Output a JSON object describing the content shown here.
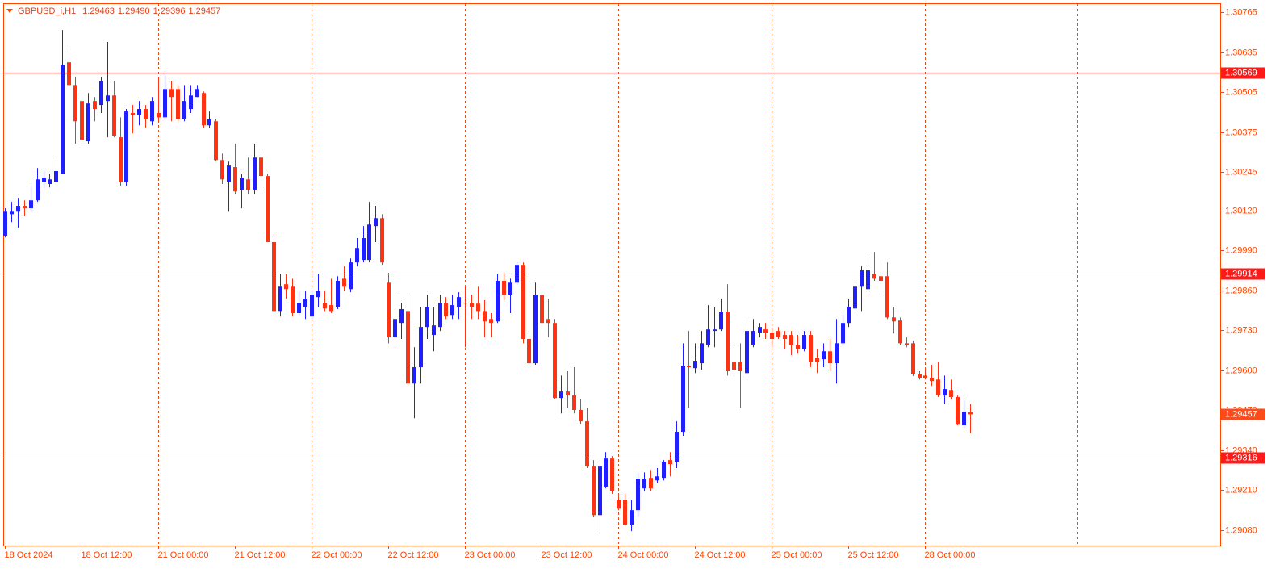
{
  "chart_data": {
    "type": "candlestick",
    "title": "GBPUSD_i,H1",
    "quote_labels": [
      "1.29463",
      "1.29490",
      "1.29396",
      "1.29457"
    ],
    "categories": [
      "18 Oct 2024",
      null,
      null,
      null,
      null,
      null,
      null,
      null,
      null,
      null,
      null,
      null,
      "18 Oct 12:00",
      null,
      null,
      null,
      null,
      null,
      null,
      null,
      null,
      null,
      null,
      null,
      "21 Oct 00:00",
      null,
      null,
      null,
      null,
      null,
      null,
      null,
      null,
      null,
      null,
      null,
      "21 Oct 12:00",
      null,
      null,
      null,
      null,
      null,
      null,
      null,
      null,
      null,
      null,
      null,
      "22 Oct 00:00",
      null,
      null,
      null,
      null,
      null,
      null,
      null,
      null,
      null,
      null,
      null,
      "22 Oct 12:00",
      null,
      null,
      null,
      null,
      null,
      null,
      null,
      null,
      null,
      null,
      null,
      "23 Oct 00:00",
      null,
      null,
      null,
      null,
      null,
      null,
      null,
      null,
      null,
      null,
      null,
      "23 Oct 12:00",
      null,
      null,
      null,
      null,
      null,
      null,
      null,
      null,
      null,
      null,
      null,
      "24 Oct 00:00",
      null,
      null,
      null,
      null,
      null,
      null,
      null,
      null,
      null,
      null,
      null,
      "24 Oct 12:00",
      null,
      null,
      null,
      null,
      null,
      null,
      null,
      null,
      null,
      null,
      null,
      "25 Oct 00:00",
      null,
      null,
      null,
      null,
      null,
      null,
      null,
      null,
      null,
      null,
      null,
      "25 Oct 12:00",
      null,
      null,
      null,
      null,
      null,
      null,
      null,
      null,
      null,
      null,
      null,
      "28 Oct 00:00",
      null,
      null,
      null,
      null,
      null,
      null,
      null
    ],
    "open": [
      1.30038,
      1.30108,
      1.30116,
      1.30135,
      1.30127,
      1.30153,
      1.30213,
      1.30206,
      1.30213,
      1.3024,
      1.30602,
      1.30528,
      1.30476,
      1.30345,
      1.30476,
      1.30463,
      1.30476,
      1.30494,
      1.30358,
      1.30213,
      1.30437,
      1.30431,
      1.3045,
      1.3041,
      1.30437,
      1.30423,
      1.30515,
      1.30515,
      1.30416,
      1.3045,
      1.30489,
      1.30502,
      1.30397,
      1.3041,
      1.30284,
      1.30213,
      1.30261,
      1.30187,
      1.30221,
      1.30187,
      1.30292,
      1.30232,
      1.30017,
      1.29793,
      1.2988,
      1.29872,
      1.29786,
      1.29807,
      1.29775,
      1.29838,
      1.2982,
      1.29812,
      1.29807,
      1.29898,
      1.29864,
      1.29951,
      1.29959,
      1.29959,
      1.30069,
      1.30095,
      1.29885,
      1.29707,
      1.29754,
      1.29793,
      1.29557,
      1.2961,
      1.29741,
      1.29715,
      1.29741,
      1.2982,
      1.2978,
      1.29807,
      1.2982,
      1.2982,
      1.29817,
      1.29793,
      1.29767,
      1.29759,
      1.29891,
      1.29846,
      1.29885,
      1.29943,
      1.29702,
      1.29623,
      1.29846,
      1.29767,
      1.29754,
      1.2951,
      1.29531,
      1.29518,
      1.29471,
      1.29434,
      1.29287,
      1.29129,
      1.29221,
      1.29313,
      1.29177,
      1.29177,
      1.29098,
      1.29145,
      1.29216,
      1.2925,
      1.29242,
      1.2925,
      1.29308,
      1.29303,
      1.294,
      1.29615,
      1.29607,
      1.29623,
      1.29681,
      1.29728,
      1.29733,
      1.29791,
      1.29628,
      1.29628,
      1.29591,
      1.29681,
      1.29723,
      1.29733,
      1.29723,
      1.29728,
      1.29715,
      1.29715,
      1.29681,
      1.2967,
      1.29715,
      1.29641,
      1.29636,
      1.29662,
      1.29623,
      1.29688,
      1.29754,
      1.29801,
      1.29872,
      1.29864,
      1.29912,
      1.29906,
      1.29906,
      1.29772,
      1.29762,
      1.29688,
      1.29688,
      1.29589,
      1.29583,
      1.29576,
      1.2957,
      1.29518,
      1.29536,
      1.29513,
      1.29421,
      1.29463
    ],
    "high": [
      1.30127,
      1.30148,
      1.30161,
      1.30153,
      1.302,
      1.30258,
      1.30248,
      1.3024,
      1.30292,
      1.30707,
      1.30646,
      1.30555,
      1.30494,
      1.30502,
      1.30489,
      1.30555,
      1.30668,
      1.30542,
      1.30423,
      1.3045,
      1.30463,
      1.30476,
      1.30463,
      1.30489,
      1.30555,
      1.3056,
      1.30542,
      1.30528,
      1.30528,
      1.30528,
      1.30528,
      1.30507,
      1.30442,
      1.30416,
      1.30305,
      1.30279,
      1.30337,
      1.3024,
      1.30292,
      1.30337,
      1.30318,
      1.3024,
      1.3003,
      1.29912,
      1.29912,
      1.29898,
      1.29859,
      1.29859,
      1.29859,
      1.29912,
      1.29859,
      1.29898,
      1.29906,
      1.29938,
      1.29964,
      1.3003,
      1.30069,
      1.30148,
      1.30135,
      1.30108,
      1.29917,
      1.29846,
      1.2982,
      1.29846,
      1.29675,
      1.29807,
      1.29846,
      1.29807,
      1.29846,
      1.29838,
      1.29846,
      1.29854,
      1.29872,
      1.29846,
      1.29872,
      1.29828,
      1.29786,
      1.29912,
      1.29917,
      1.29898,
      1.29951,
      1.29951,
      1.29728,
      1.29885,
      1.29872,
      1.29833,
      1.29767,
      1.29583,
      1.29597,
      1.2961,
      1.29505,
      1.29478,
      1.29308,
      1.29303,
      1.29334,
      1.29321,
      1.2919,
      1.29198,
      1.29177,
      1.29268,
      1.29268,
      1.29276,
      1.29282,
      1.29308,
      1.29334,
      1.29434,
      1.29688,
      1.29728,
      1.29688,
      1.29728,
      1.29812,
      1.29807,
      1.29833,
      1.2988,
      1.29681,
      1.29688,
      1.29775,
      1.29767,
      1.29754,
      1.29754,
      1.29741,
      1.29741,
      1.29728,
      1.29728,
      1.29715,
      1.29728,
      1.29728,
      1.2967,
      1.29688,
      1.29702,
      1.29767,
      1.2978,
      1.29833,
      1.29885,
      1.29938,
      1.29969,
      1.29985,
      1.29964,
      1.29951,
      1.29807,
      1.29772,
      1.29707,
      1.29696,
      1.29597,
      1.29602,
      1.29618,
      1.29628,
      1.29583,
      1.2957,
      1.29518,
      1.29505,
      1.2949
    ],
    "low": [
      1.30032,
      1.30082,
      1.30064,
      1.30101,
      1.30116,
      1.30148,
      1.30195,
      1.30195,
      1.302,
      1.3024,
      1.30515,
      1.30337,
      1.30337,
      1.30337,
      1.3041,
      1.30437,
      1.30358,
      1.30358,
      1.302,
      1.302,
      1.30371,
      1.30397,
      1.30389,
      1.30397,
      1.3041,
      1.30416,
      1.3041,
      1.3041,
      1.3041,
      1.30437,
      1.30489,
      1.30389,
      1.30389,
      1.30279,
      1.30206,
      1.30116,
      1.30174,
      1.30127,
      1.30174,
      1.30174,
      1.30187,
      1.30017,
      1.29786,
      1.29775,
      1.29833,
      1.29775,
      1.2978,
      1.29767,
      1.29765,
      1.29807,
      1.29793,
      1.29786,
      1.29799,
      1.29859,
      1.29854,
      1.29938,
      1.29951,
      1.29951,
      1.30017,
      1.29943,
      1.29688,
      1.29688,
      1.29702,
      1.29549,
      1.29444,
      1.29557,
      1.29702,
      1.29662,
      1.29728,
      1.29767,
      1.29767,
      1.29767,
      1.29675,
      1.29767,
      1.29767,
      1.29707,
      1.29707,
      1.29754,
      1.29828,
      1.29786,
      1.2988,
      1.29688,
      1.29618,
      1.29618,
      1.29741,
      1.29707,
      1.29505,
      1.2946,
      1.29478,
      1.2946,
      1.29426,
      1.29282,
      1.29124,
      1.29072,
      1.29216,
      1.29198,
      1.29145,
      1.29093,
      1.29077,
      1.29124,
      1.29208,
      1.29208,
      1.29234,
      1.29242,
      1.29255,
      1.29282,
      1.29387,
      1.29478,
      1.29591,
      1.29602,
      1.29675,
      1.29675,
      1.29728,
      1.29583,
      1.2957,
      1.29478,
      1.29583,
      1.29675,
      1.29707,
      1.29702,
      1.29675,
      1.29702,
      1.2967,
      1.29649,
      1.29654,
      1.29662,
      1.2961,
      1.29591,
      1.2961,
      1.29597,
      1.29557,
      1.29681,
      1.29741,
      1.29793,
      1.29793,
      1.29854,
      1.29891,
      1.29846,
      1.29767,
      1.2972,
      1.29681,
      1.29675,
      1.29581,
      1.2957,
      1.2957,
      1.29549,
      1.29513,
      1.29492,
      1.29505,
      1.29421,
      1.29413,
      1.29396
    ],
    "close": [
      1.30116,
      1.30116,
      1.30135,
      1.30127,
      1.30153,
      1.30221,
      1.30227,
      1.30221,
      1.30248,
      1.30594,
      1.30528,
      1.3041,
      1.3035,
      1.30468,
      1.3045,
      1.30542,
      1.30494,
      1.30363,
      1.30213,
      1.30442,
      1.30431,
      1.3045,
      1.30416,
      1.30476,
      1.30423,
      1.30515,
      1.30489,
      1.30416,
      1.30476,
      1.30494,
      1.30515,
      1.30397,
      1.30416,
      1.30284,
      1.30221,
      1.30266,
      1.30182,
      1.30227,
      1.30187,
      1.30292,
      1.30232,
      1.30017,
      1.29793,
      1.29872,
      1.29864,
      1.29786,
      1.2982,
      1.29833,
      1.29846,
      1.29859,
      1.29801,
      1.29793,
      1.29891,
      1.29872,
      1.29951,
      1.29998,
      1.3003,
      1.30074,
      1.30095,
      1.29951,
      1.29707,
      1.29767,
      1.29799,
      1.29557,
      1.2961,
      1.29741,
      1.29807,
      1.29746,
      1.2982,
      1.29775,
      1.29812,
      1.29838,
      1.29817,
      1.29807,
      1.29793,
      1.29759,
      1.29754,
      1.29891,
      1.29846,
      1.29885,
      1.29943,
      1.29702,
      1.29623,
      1.29846,
      1.29754,
      1.29754,
      1.2951,
      1.29531,
      1.29518,
      1.29471,
      1.29434,
      1.29287,
      1.29129,
      1.29287,
      1.29313,
      1.29208,
      1.2915,
      1.29098,
      1.29145,
      1.29247,
      1.29247,
      1.29216,
      1.29255,
      1.29303,
      1.29295,
      1.294,
      1.29615,
      1.2961,
      1.29631,
      1.29688,
      1.29733,
      1.29733,
      1.29791,
      1.29597,
      1.29602,
      1.29597,
      1.29728,
      1.29728,
      1.29741,
      1.29723,
      1.29702,
      1.29707,
      1.29702,
      1.29681,
      1.2967,
      1.29715,
      1.29628,
      1.29628,
      1.29662,
      1.29623,
      1.29688,
      1.29754,
      1.29807,
      1.29872,
      1.29925,
      1.29925,
      1.29898,
      1.29891,
      1.29772,
      1.29759,
      1.29688,
      1.29681,
      1.29589,
      1.29576,
      1.29576,
      1.29565,
      1.29518,
      1.29539,
      1.29513,
      1.29426,
      1.29465,
      1.29457
    ],
    "up_color": "#1f1fff",
    "down_color": "#ff3311",
    "ylim": [
      1.2903,
      1.30794
    ],
    "yticks": [
      1.30765,
      1.30635,
      1.30505,
      1.30375,
      1.30245,
      {
        "value": 1.3012,
        "label": "1.30120"
      },
      {
        "value": 1.2999,
        "label": "1.29990"
      },
      {
        "value": 1.2986,
        "label": "1.29860"
      },
      {
        "value": 1.2973,
        "label": "1.29730"
      },
      {
        "value": 1.296,
        "label": "1.29600"
      },
      {
        "value": 1.2947,
        "label": "1.29470"
      },
      {
        "value": 1.2934,
        "label": "1.29340"
      },
      {
        "value": 1.2921,
        "label": "1.29210"
      },
      {
        "value": 1.2908,
        "label": "1.29080"
      }
    ],
    "levels": [
      1.30569,
      1.29914,
      1.29316
    ],
    "level_color": "#ff1a1a",
    "last_price_color": "#ff4a1a",
    "axis_color": "#ff4500",
    "grid": true
  }
}
